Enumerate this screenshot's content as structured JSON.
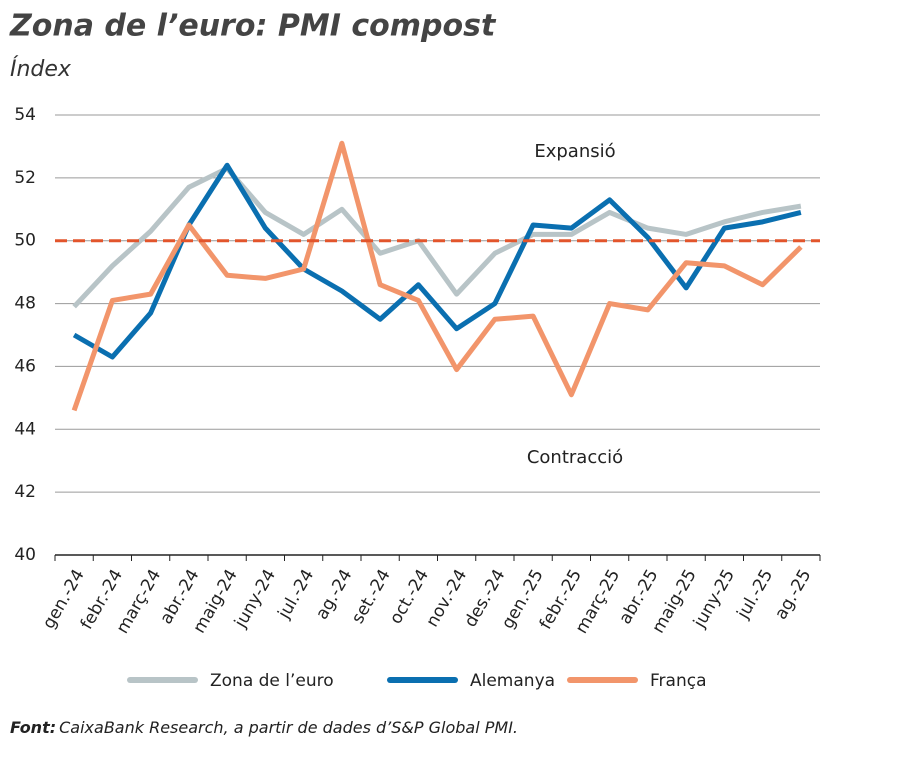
{
  "chart_data": {
    "type": "line",
    "title": "Zona de l’euro: PMI compost",
    "subtitle": "Índex",
    "categories": [
      "gen.-24",
      "febr.-24",
      "març-24",
      "abr.-24",
      "maig-24",
      "juny-24",
      "jul.-24",
      "ag.-24",
      "set.-24",
      "oct.-24",
      "nov.-24",
      "des.-24",
      "gen.-25",
      "febr.-25",
      "març-25",
      "abr.-25",
      "maig-25",
      "juny-25",
      "jul.-25",
      "ag.-25"
    ],
    "series": [
      {
        "name": "Zona de l’euro",
        "color": "#b8c4c7",
        "values": [
          47.9,
          49.2,
          50.3,
          51.7,
          52.3,
          50.9,
          50.2,
          51.0,
          49.6,
          50.0,
          48.3,
          49.6,
          50.2,
          50.2,
          50.9,
          50.4,
          50.2,
          50.6,
          50.9,
          51.1
        ]
      },
      {
        "name": "Alemanya",
        "color": "#0a6fb0",
        "values": [
          47.0,
          46.3,
          47.7,
          50.5,
          52.4,
          50.4,
          49.1,
          48.4,
          47.5,
          48.6,
          47.2,
          48.0,
          50.5,
          50.4,
          51.3,
          50.1,
          48.5,
          50.4,
          50.6,
          50.9
        ]
      },
      {
        "name": "França",
        "color": "#f2956b",
        "values": [
          44.6,
          48.1,
          48.3,
          50.5,
          48.9,
          48.8,
          49.1,
          53.1,
          48.6,
          48.1,
          45.9,
          47.5,
          47.6,
          45.1,
          48.0,
          47.8,
          49.3,
          49.2,
          48.6,
          49.8
        ]
      }
    ],
    "reference_line": {
      "value": 50,
      "color": "#e2552c"
    },
    "annotations": [
      "Expansió",
      "Contracció"
    ],
    "source": {
      "label": "Font:",
      "text": "CaixaBank Research, a partir de dades d’S&P Global PMI."
    },
    "ylim": [
      40,
      54
    ],
    "yticks": [
      40,
      42,
      44,
      46,
      48,
      50,
      52,
      54
    ],
    "grid": true,
    "legend": "bottom"
  }
}
